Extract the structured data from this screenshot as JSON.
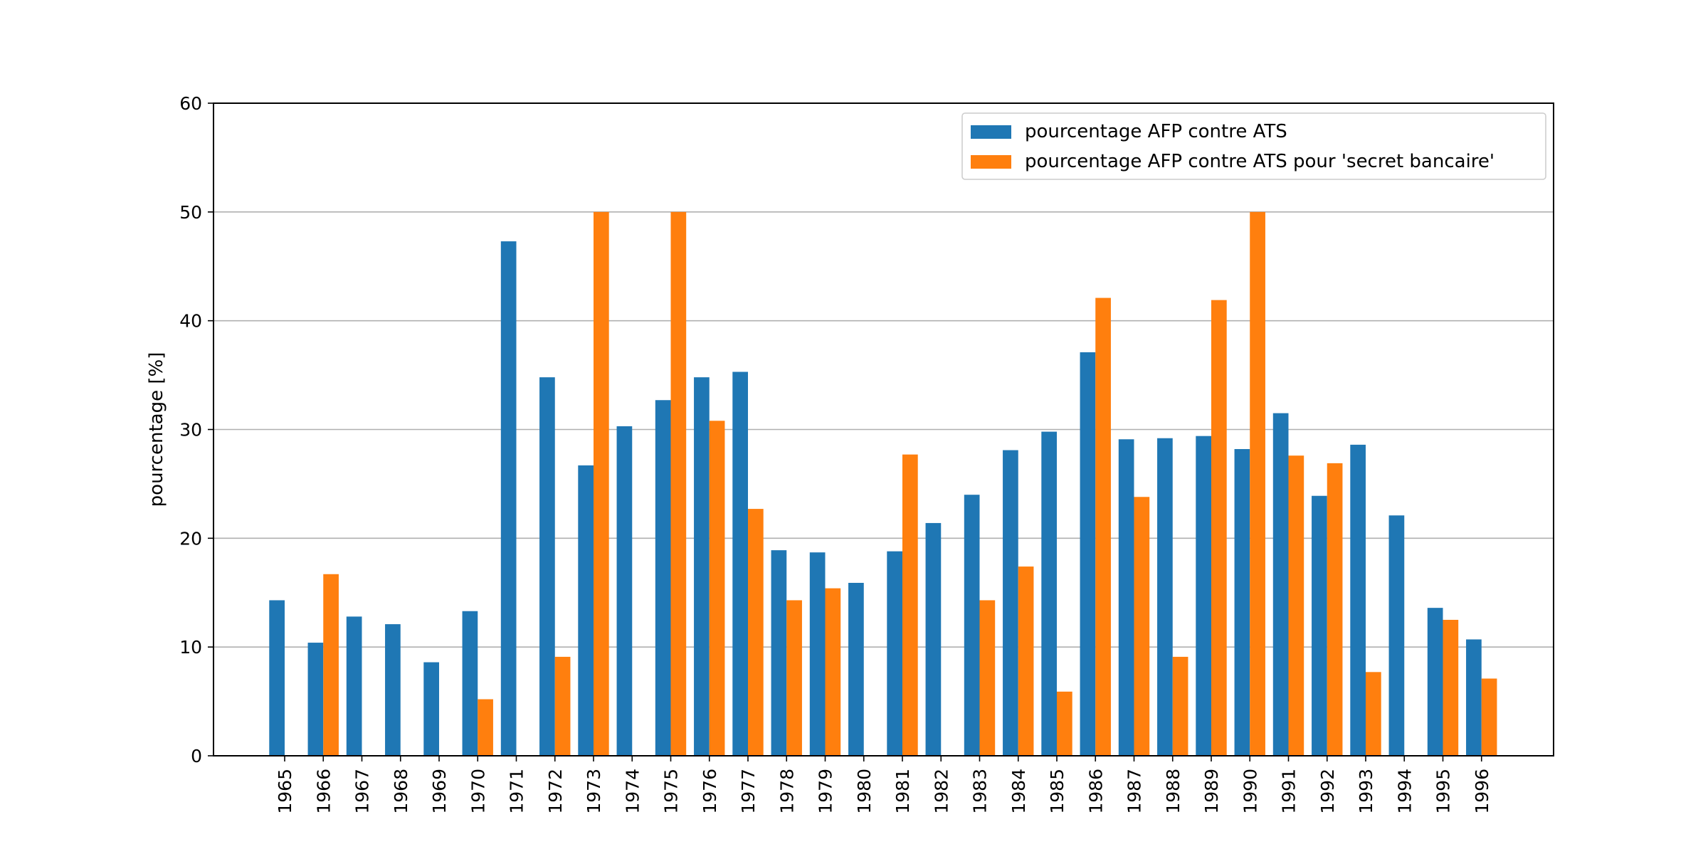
{
  "chart_data": {
    "type": "bar",
    "title": "",
    "xlabel": "",
    "ylabel": "pourcentage [%]",
    "ylim": [
      0,
      60
    ],
    "yticks": [
      0,
      10,
      20,
      30,
      40,
      50,
      60
    ],
    "grid": "horizontal",
    "legend_position": "top-right",
    "categories": [
      "1965",
      "1966",
      "1967",
      "1968",
      "1969",
      "1970",
      "1971",
      "1972",
      "1973",
      "1974",
      "1975",
      "1976",
      "1977",
      "1978",
      "1979",
      "1980",
      "1981",
      "1982",
      "1983",
      "1984",
      "1985",
      "1986",
      "1987",
      "1988",
      "1989",
      "1990",
      "1991",
      "1992",
      "1993",
      "1994",
      "1995",
      "1996"
    ],
    "series": [
      {
        "name": "pourcentage AFP contre ATS",
        "color": "#1f77b4",
        "values": [
          14.3,
          10.4,
          12.8,
          12.1,
          8.6,
          13.3,
          47.3,
          34.8,
          26.7,
          30.3,
          32.7,
          34.8,
          35.3,
          18.9,
          18.7,
          15.9,
          18.8,
          21.4,
          24.0,
          28.1,
          29.8,
          37.1,
          29.1,
          29.2,
          29.4,
          28.2,
          31.5,
          23.9,
          28.6,
          22.1,
          13.6,
          10.7
        ]
      },
      {
        "name": "pourcentage AFP contre ATS pour 'secret bancaire'",
        "color": "#ff7f0e",
        "values": [
          0,
          16.7,
          0,
          0,
          0,
          5.2,
          0,
          9.1,
          50.0,
          0,
          50.0,
          30.8,
          22.7,
          14.3,
          15.4,
          0,
          27.7,
          0,
          14.3,
          17.4,
          5.9,
          42.1,
          23.8,
          9.1,
          41.9,
          50.0,
          27.6,
          26.9,
          7.7,
          0,
          12.5,
          7.1
        ]
      }
    ]
  }
}
